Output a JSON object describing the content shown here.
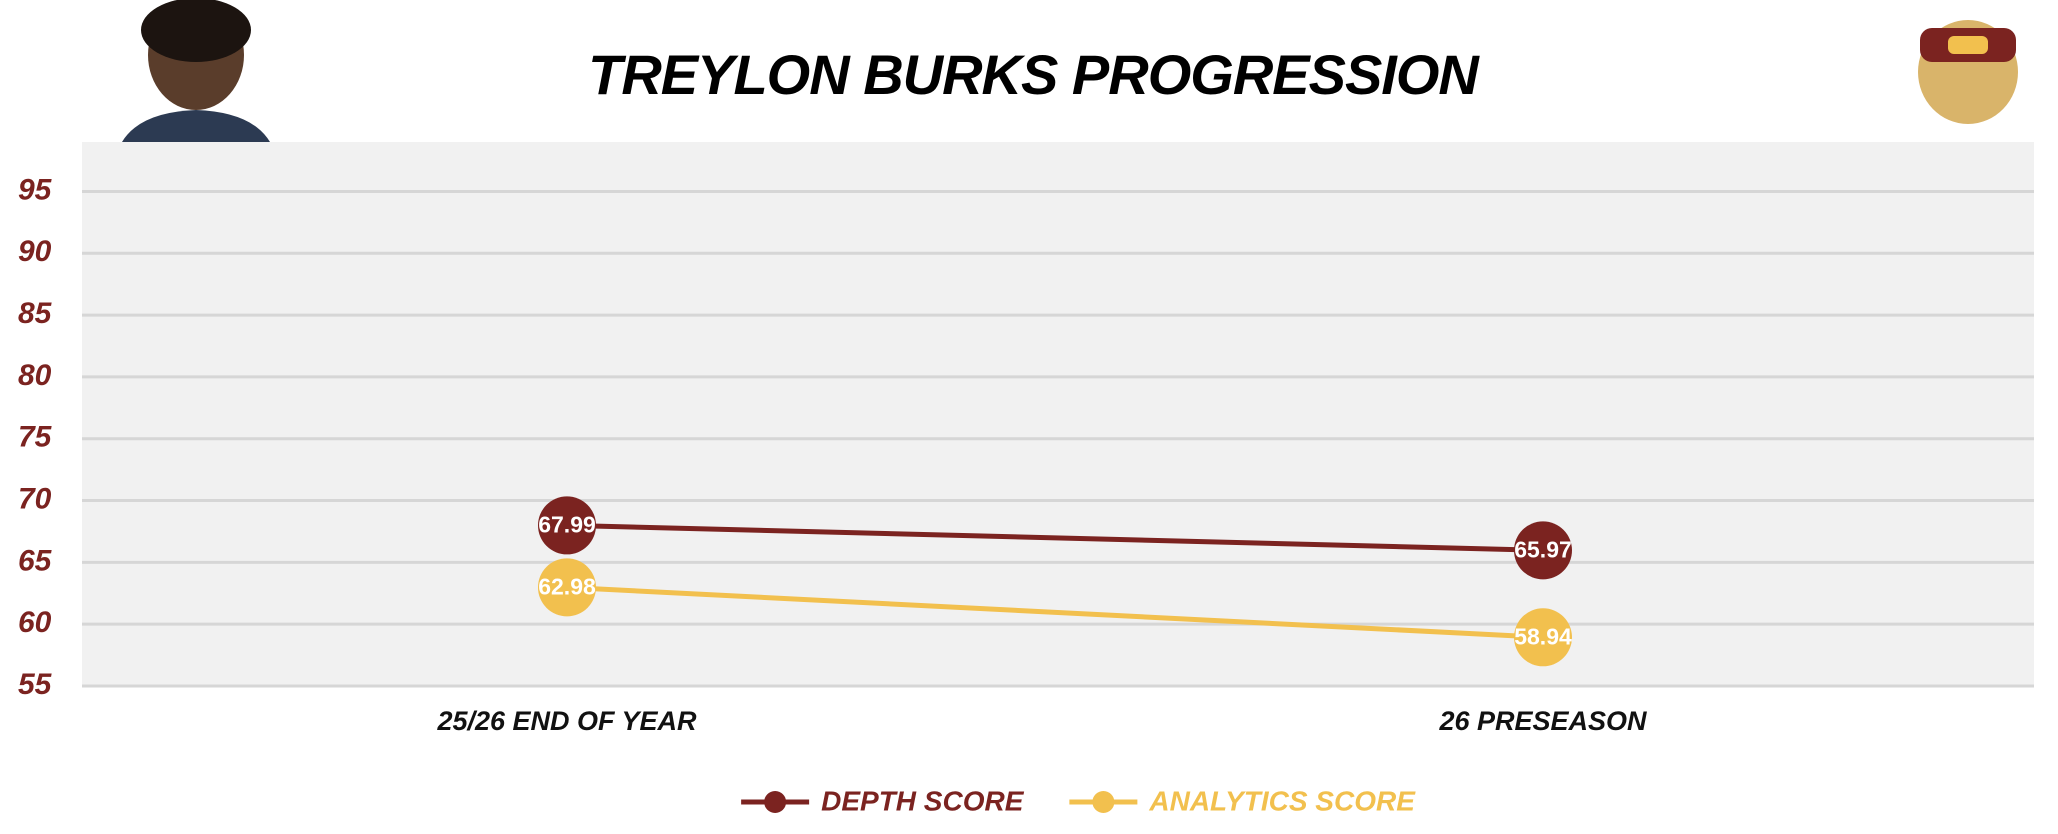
{
  "chart_data": {
    "type": "line",
    "title": "TREYLON BURKS PROGRESSION",
    "categories": [
      "25/26 END OF YEAR",
      "26 PRESEASON"
    ],
    "series": [
      {
        "name": "DEPTH SCORE",
        "color": "#7b2320",
        "values": [
          67.99,
          65.97
        ]
      },
      {
        "name": "ANALYTICS SCORE",
        "color": "#f2c04e",
        "values": [
          62.98,
          58.94
        ]
      }
    ],
    "ylim": [
      55,
      99
    ],
    "yticks": [
      55,
      60,
      65,
      70,
      75,
      80,
      85,
      90,
      95
    ],
    "grid": true,
    "tick_color": "#7b2320",
    "legend": "bottom"
  }
}
